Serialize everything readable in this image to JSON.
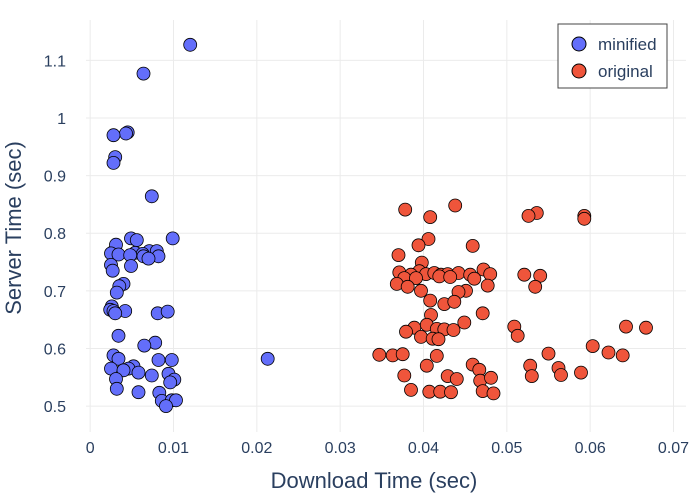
{
  "chart_data": {
    "type": "scatter",
    "xlabel": "Download Time (sec)",
    "ylabel": "Server Time (sec)",
    "xlim": [
      -0.0005,
      0.0715
    ],
    "ylim": [
      0.455,
      1.17
    ],
    "xticks": [
      0,
      0.01,
      0.02,
      0.03,
      0.04,
      0.05,
      0.06,
      0.07
    ],
    "xtick_labels": [
      "0",
      "0.01",
      "0.02",
      "0.03",
      "0.04",
      "0.05",
      "0.06",
      "0.07"
    ],
    "yticks": [
      0.5,
      0.6,
      0.7,
      0.8,
      0.9,
      1.0,
      1.1
    ],
    "ytick_labels": [
      "0.5",
      "0.6",
      "0.7",
      "0.8",
      "0.9",
      "1",
      "1.1"
    ],
    "grid": true,
    "legend_position": "top-right",
    "series": [
      {
        "name": "minified",
        "color": "#636efa",
        "points": [
          [
            0.012,
            1.127
          ],
          [
            0.0064,
            1.077
          ],
          [
            0.0045,
            0.975
          ],
          [
            0.0043,
            0.973
          ],
          [
            0.0028,
            0.97
          ],
          [
            0.003,
            0.932
          ],
          [
            0.0028,
            0.922
          ],
          [
            0.0074,
            0.864
          ],
          [
            0.0049,
            0.791
          ],
          [
            0.0099,
            0.791
          ],
          [
            0.0056,
            0.788
          ],
          [
            0.0071,
            0.769
          ],
          [
            0.008,
            0.769
          ],
          [
            0.0028,
            0.768
          ],
          [
            0.0031,
            0.78
          ],
          [
            0.0054,
            0.766
          ],
          [
            0.0063,
            0.764
          ],
          [
            0.0025,
            0.765
          ],
          [
            0.0034,
            0.763
          ],
          [
            0.0048,
            0.762
          ],
          [
            0.0064,
            0.76
          ],
          [
            0.0082,
            0.76
          ],
          [
            0.007,
            0.756
          ],
          [
            0.0025,
            0.745
          ],
          [
            0.0049,
            0.743
          ],
          [
            0.0027,
            0.735
          ],
          [
            0.004,
            0.712
          ],
          [
            0.0035,
            0.708
          ],
          [
            0.0032,
            0.697
          ],
          [
            0.0026,
            0.673
          ],
          [
            0.0024,
            0.667
          ],
          [
            0.0028,
            0.665
          ],
          [
            0.0042,
            0.665
          ],
          [
            0.003,
            0.661
          ],
          [
            0.0081,
            0.661
          ],
          [
            0.0093,
            0.664
          ],
          [
            0.0034,
            0.622
          ],
          [
            0.0078,
            0.61
          ],
          [
            0.0065,
            0.605
          ],
          [
            0.0028,
            0.588
          ],
          [
            0.0034,
            0.582
          ],
          [
            0.0082,
            0.58
          ],
          [
            0.0098,
            0.58
          ],
          [
            0.0052,
            0.569
          ],
          [
            0.0046,
            0.565
          ],
          [
            0.0025,
            0.565
          ],
          [
            0.004,
            0.562
          ],
          [
            0.0058,
            0.558
          ],
          [
            0.0074,
            0.553
          ],
          [
            0.0031,
            0.547
          ],
          [
            0.0094,
            0.556
          ],
          [
            0.0101,
            0.546
          ],
          [
            0.0096,
            0.541
          ],
          [
            0.0032,
            0.53
          ],
          [
            0.0058,
            0.524
          ],
          [
            0.0083,
            0.523
          ],
          [
            0.0086,
            0.509
          ],
          [
            0.0098,
            0.51
          ],
          [
            0.0103,
            0.51
          ],
          [
            0.0091,
            0.5
          ],
          [
            0.0213,
            0.582
          ]
        ]
      },
      {
        "name": "original",
        "color": "#ef553b",
        "points": [
          [
            0.0438,
            0.848
          ],
          [
            0.0378,
            0.841
          ],
          [
            0.0408,
            0.828
          ],
          [
            0.0536,
            0.835
          ],
          [
            0.0526,
            0.83
          ],
          [
            0.0593,
            0.83
          ],
          [
            0.0593,
            0.825
          ],
          [
            0.0406,
            0.79
          ],
          [
            0.0394,
            0.779
          ],
          [
            0.0459,
            0.778
          ],
          [
            0.037,
            0.762
          ],
          [
            0.0398,
            0.749
          ],
          [
            0.0472,
            0.737
          ],
          [
            0.0371,
            0.732
          ],
          [
            0.0395,
            0.734
          ],
          [
            0.0385,
            0.728
          ],
          [
            0.0403,
            0.729
          ],
          [
            0.0413,
            0.731
          ],
          [
            0.0421,
            0.728
          ],
          [
            0.0429,
            0.729
          ],
          [
            0.0442,
            0.731
          ],
          [
            0.0456,
            0.728
          ],
          [
            0.048,
            0.729
          ],
          [
            0.0521,
            0.728
          ],
          [
            0.054,
            0.726
          ],
          [
            0.0377,
            0.722
          ],
          [
            0.0391,
            0.722
          ],
          [
            0.0419,
            0.725
          ],
          [
            0.0432,
            0.724
          ],
          [
            0.0461,
            0.721
          ],
          [
            0.0368,
            0.712
          ],
          [
            0.0381,
            0.707
          ],
          [
            0.0397,
            0.7
          ],
          [
            0.0451,
            0.7
          ],
          [
            0.0442,
            0.698
          ],
          [
            0.0477,
            0.709
          ],
          [
            0.0534,
            0.707
          ],
          [
            0.0408,
            0.683
          ],
          [
            0.0425,
            0.677
          ],
          [
            0.0437,
            0.681
          ],
          [
            0.0471,
            0.661
          ],
          [
            0.0409,
            0.658
          ],
          [
            0.0389,
            0.636
          ],
          [
            0.0404,
            0.641
          ],
          [
            0.0416,
            0.634
          ],
          [
            0.0425,
            0.633
          ],
          [
            0.0436,
            0.632
          ],
          [
            0.0449,
            0.645
          ],
          [
            0.0397,
            0.62
          ],
          [
            0.0411,
            0.617
          ],
          [
            0.0418,
            0.616
          ],
          [
            0.0379,
            0.629
          ],
          [
            0.0509,
            0.638
          ],
          [
            0.0513,
            0.622
          ],
          [
            0.0643,
            0.638
          ],
          [
            0.0667,
            0.636
          ],
          [
            0.0603,
            0.604
          ],
          [
            0.0347,
            0.589
          ],
          [
            0.0363,
            0.588
          ],
          [
            0.0375,
            0.59
          ],
          [
            0.0416,
            0.587
          ],
          [
            0.055,
            0.591
          ],
          [
            0.0622,
            0.593
          ],
          [
            0.0639,
            0.588
          ],
          [
            0.0404,
            0.57
          ],
          [
            0.0459,
            0.572
          ],
          [
            0.0528,
            0.57
          ],
          [
            0.0562,
            0.566
          ],
          [
            0.0467,
            0.563
          ],
          [
            0.0589,
            0.558
          ],
          [
            0.0377,
            0.553
          ],
          [
            0.0429,
            0.552
          ],
          [
            0.044,
            0.547
          ],
          [
            0.0468,
            0.544
          ],
          [
            0.0481,
            0.549
          ],
          [
            0.053,
            0.552
          ],
          [
            0.0565,
            0.554
          ],
          [
            0.0385,
            0.528
          ],
          [
            0.0407,
            0.525
          ],
          [
            0.042,
            0.525
          ],
          [
            0.0433,
            0.524
          ],
          [
            0.0471,
            0.526
          ],
          [
            0.0484,
            0.522
          ]
        ]
      }
    ]
  }
}
